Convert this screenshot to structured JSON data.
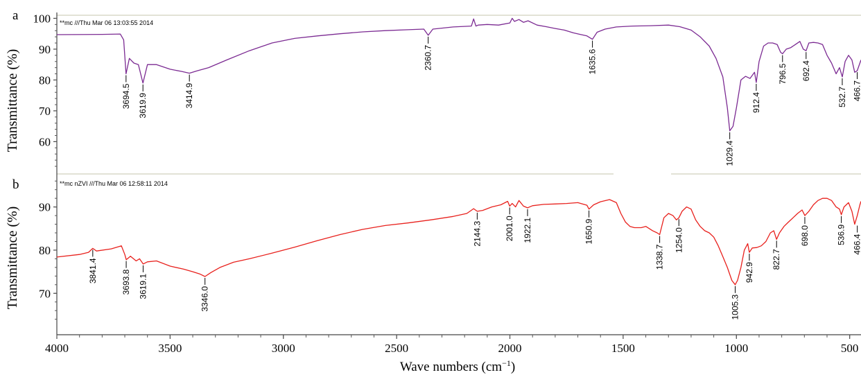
{
  "chart_data": [
    {
      "type": "line",
      "panel": "a",
      "header_note": "**mc ///Thu Mar 06 13:03:55 2014",
      "ylabel": "Transmittance (%)",
      "yticks": [
        "100",
        "90",
        "80",
        "70",
        "60"
      ],
      "ylim": [
        52,
        101
      ],
      "xlim": [
        4000,
        450
      ],
      "series": [
        {
          "color": "#7B2A92",
          "x": [
            4000,
            3800,
            3720,
            3705,
            3694.5,
            3680,
            3660,
            3640,
            3619.9,
            3600,
            3560,
            3500,
            3450,
            3414.9,
            3380,
            3330,
            3250,
            3150,
            3050,
            2950,
            2850,
            2750,
            2650,
            2550,
            2450,
            2380,
            2360.7,
            2340,
            2250,
            2170,
            2160,
            2150,
            2140,
            2100,
            2050,
            2000,
            1990,
            1980,
            1960,
            1940,
            1920,
            1880,
            1840,
            1800,
            1760,
            1720,
            1690,
            1660,
            1635.6,
            1615,
            1580,
            1530,
            1460,
            1380,
            1300,
            1250,
            1200,
            1160,
            1120,
            1090,
            1060,
            1040,
            1029.4,
            1015,
            1000,
            980,
            960,
            940,
            920,
            912.4,
            900,
            880,
            860,
            840,
            820,
            805,
            796.5,
            780,
            760,
            740,
            720,
            705,
            692.4,
            680,
            660,
            640,
            620,
            600,
            580,
            560,
            545,
            532.7,
            520,
            505,
            490,
            478,
            466.7,
            455,
            450
          ],
          "y": [
            94.7,
            94.8,
            94.9,
            93,
            82,
            87,
            85.5,
            85,
            79,
            85,
            85,
            83.5,
            82.8,
            82.2,
            83,
            84,
            86.5,
            89.5,
            92,
            93.5,
            94.3,
            95,
            95.6,
            96,
            96.3,
            96.5,
            94.5,
            96.5,
            97.2,
            97.5,
            99.8,
            97.5,
            97.8,
            98,
            97.8,
            98.5,
            100,
            99,
            99.6,
            98.7,
            99.2,
            97.8,
            97.3,
            96.7,
            96.2,
            95.3,
            94.8,
            94.3,
            93.2,
            95.5,
            96.5,
            97.2,
            97.5,
            97.6,
            97.8,
            97.3,
            96.2,
            94,
            91,
            87,
            81,
            71,
            63.5,
            65,
            71,
            80,
            81.2,
            80.5,
            82.5,
            79.2,
            86,
            91,
            92,
            92,
            91.5,
            89,
            88.5,
            90,
            90.5,
            91.5,
            92.5,
            90,
            89.5,
            92,
            92.2,
            92,
            91.5,
            88,
            85.5,
            82,
            84,
            81,
            86,
            88,
            86.5,
            82.5,
            83,
            85.5,
            86.5
          ]
        }
      ],
      "annotations": [
        {
          "x": 3694.5,
          "y": 82,
          "label": "3694.5"
        },
        {
          "x": 3619.9,
          "y": 79,
          "label": "3619.9"
        },
        {
          "x": 3414.9,
          "y": 82.2,
          "label": "3414.9"
        },
        {
          "x": 2360.7,
          "y": 94.5,
          "label": "2360.7"
        },
        {
          "x": 1635.6,
          "y": 93.2,
          "label": "1635.6"
        },
        {
          "x": 1029.4,
          "y": 63.5,
          "label": "1029.4"
        },
        {
          "x": 912.4,
          "y": 79.2,
          "label": "912.4"
        },
        {
          "x": 796.5,
          "y": 88.5,
          "label": "796.5"
        },
        {
          "x": 692.4,
          "y": 89.5,
          "label": "692.4"
        },
        {
          "x": 532.7,
          "y": 81,
          "label": "532.7"
        },
        {
          "x": 466.7,
          "y": 83,
          "label": "466.7"
        }
      ]
    },
    {
      "type": "line",
      "panel": "b",
      "header_note": "**mc nZVI ///Thu Mar 06 12:58:11 2014",
      "ylabel": "Transmittance (%)",
      "yticks": [
        "90",
        "80",
        "70"
      ],
      "ylim": [
        62.5,
        97
      ],
      "xlim": [
        4000,
        450
      ],
      "series": [
        {
          "color": "#E8201C",
          "x": [
            4000,
            3900,
            3860,
            3841.4,
            3825,
            3760,
            3715,
            3700,
            3693.8,
            3675,
            3650,
            3635,
            3619.1,
            3600,
            3560,
            3500,
            3440,
            3400,
            3370,
            3346,
            3320,
            3280,
            3220,
            3150,
            3050,
            2950,
            2850,
            2750,
            2650,
            2550,
            2450,
            2350,
            2250,
            2190,
            2160,
            2144.3,
            2120,
            2080,
            2040,
            2010,
            2001,
            1990,
            1975,
            1960,
            1940,
            1922.1,
            1900,
            1850,
            1800,
            1750,
            1700,
            1660,
            1650.9,
            1630,
            1600,
            1560,
            1530,
            1510,
            1490,
            1470,
            1450,
            1420,
            1400,
            1370,
            1350,
            1338.7,
            1320,
            1300,
            1280,
            1265,
            1254,
            1240,
            1220,
            1200,
            1180,
            1160,
            1140,
            1120,
            1100,
            1080,
            1060,
            1040,
            1020,
            1005.3,
            995,
            980,
            965,
            950,
            942.9,
            930,
            910,
            890,
            870,
            850,
            835,
            822.7,
            810,
            790,
            770,
            750,
            730,
            710,
            698,
            680,
            660,
            640,
            620,
            600,
            580,
            560,
            545,
            536.9,
            525,
            505,
            490,
            478,
            466.4,
            455,
            450
          ],
          "y": [
            78.4,
            79,
            79.5,
            80.4,
            79.8,
            80.3,
            81,
            79,
            77.8,
            78.6,
            77.5,
            78,
            76.8,
            77.3,
            77.5,
            76.3,
            75.6,
            75,
            74.5,
            73.9,
            74.8,
            76,
            77.2,
            78,
            79.3,
            80.7,
            82.2,
            83.6,
            84.8,
            85.7,
            86.3,
            87,
            87.8,
            88.5,
            89.6,
            89,
            89.2,
            90,
            90.5,
            91.3,
            90.2,
            90.8,
            90,
            91.5,
            90.2,
            89.8,
            90.3,
            90.6,
            90.7,
            90.8,
            91,
            90.4,
            89.5,
            90.5,
            91.2,
            91.7,
            91,
            88.5,
            86.5,
            85.5,
            85.2,
            85.2,
            85.5,
            84.5,
            84,
            83.6,
            87.5,
            88.5,
            88,
            87,
            87.5,
            89,
            90,
            89.5,
            87,
            85.5,
            84.5,
            84,
            83,
            81,
            78.5,
            76,
            73,
            72,
            73,
            76,
            80,
            81.5,
            79.5,
            80.5,
            80.6,
            81,
            82,
            84,
            84.5,
            82.5,
            84,
            85.5,
            86.5,
            87.5,
            88.5,
            89.3,
            88,
            89,
            90.5,
            91.5,
            92,
            92,
            91.5,
            90,
            89.5,
            88.2,
            90,
            91,
            89,
            86,
            88,
            90.5,
            91.3
          ]
        }
      ],
      "annotations": [
        {
          "x": 3841.4,
          "y": 80.4,
          "label": "3841.4"
        },
        {
          "x": 3693.8,
          "y": 77.8,
          "label": "3693.8"
        },
        {
          "x": 3619.1,
          "y": 76.8,
          "label": "3619.1"
        },
        {
          "x": 3346,
          "y": 73.9,
          "label": "3346.0"
        },
        {
          "x": 2144.3,
          "y": 89,
          "label": "2144.3"
        },
        {
          "x": 2001,
          "y": 90.2,
          "label": "2001.0"
        },
        {
          "x": 1922.1,
          "y": 89.8,
          "label": "1922.1"
        },
        {
          "x": 1650.9,
          "y": 89.5,
          "label": "1650.9"
        },
        {
          "x": 1338.7,
          "y": 83.6,
          "label": "1338.7"
        },
        {
          "x": 1254,
          "y": 87.5,
          "label": "1254.0"
        },
        {
          "x": 1005.3,
          "y": 72,
          "label": "1005.3"
        },
        {
          "x": 942.9,
          "y": 79.5,
          "label": "942.9"
        },
        {
          "x": 822.7,
          "y": 82.5,
          "label": "822.7"
        },
        {
          "x": 698,
          "y": 88,
          "label": "698.0"
        },
        {
          "x": 536.9,
          "y": 88.2,
          "label": "536.9"
        },
        {
          "x": 466.4,
          "y": 86,
          "label": "466.4"
        }
      ]
    }
  ],
  "shared_axis": {
    "xlabel_base": "Wave numbers (cm",
    "xlabel_sup": "−1",
    "xlabel_end": ")",
    "xticks": [
      "4000",
      "3500",
      "3000",
      "2500",
      "2000",
      "1500",
      "1000",
      "500"
    ]
  }
}
